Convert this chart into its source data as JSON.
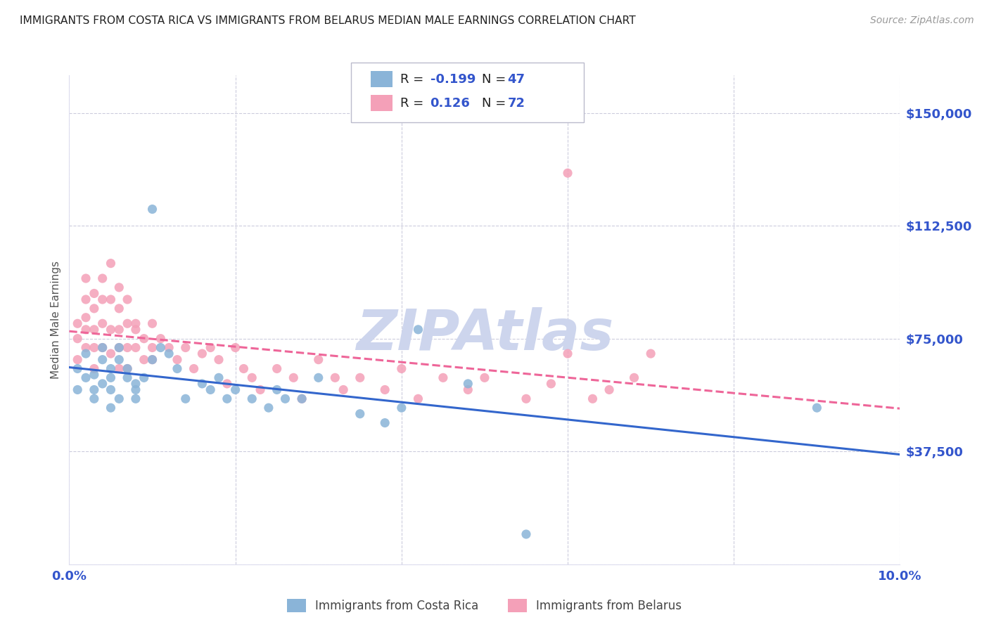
{
  "title": "IMMIGRANTS FROM COSTA RICA VS IMMIGRANTS FROM BELARUS MEDIAN MALE EARNINGS CORRELATION CHART",
  "source": "Source: ZipAtlas.com",
  "ylabel": "Median Male Earnings",
  "xlim": [
    0.0,
    0.1
  ],
  "ylim": [
    0,
    162500
  ],
  "yticks": [
    0,
    37500,
    75000,
    112500,
    150000
  ],
  "ytick_labels": [
    "",
    "$37,500",
    "$75,000",
    "$112,500",
    "$150,000"
  ],
  "xticks": [
    0.0,
    0.02,
    0.04,
    0.06,
    0.08,
    0.1
  ],
  "watermark": "ZIPAtlas",
  "watermark_color": "#cdd5ed",
  "title_color": "#222222",
  "axis_label_color": "#555555",
  "tick_label_color": "#3355cc",
  "background_color": "#ffffff",
  "grid_color": "#ccccdd",
  "series1_color": "#8ab4d8",
  "series2_color": "#f4a0b8",
  "line1_color": "#3366cc",
  "line2_color": "#ee6699",
  "r1": -0.199,
  "n1": 47,
  "r2": 0.126,
  "n2": 72,
  "costa_rica_x": [
    0.001,
    0.001,
    0.002,
    0.002,
    0.003,
    0.003,
    0.003,
    0.004,
    0.004,
    0.004,
    0.005,
    0.005,
    0.005,
    0.005,
    0.006,
    0.006,
    0.006,
    0.007,
    0.007,
    0.008,
    0.008,
    0.008,
    0.009,
    0.01,
    0.01,
    0.011,
    0.012,
    0.013,
    0.014,
    0.016,
    0.017,
    0.018,
    0.019,
    0.02,
    0.022,
    0.024,
    0.025,
    0.026,
    0.028,
    0.03,
    0.035,
    0.038,
    0.04,
    0.042,
    0.048,
    0.055,
    0.09
  ],
  "costa_rica_y": [
    65000,
    58000,
    62000,
    70000,
    58000,
    55000,
    63000,
    68000,
    60000,
    72000,
    65000,
    58000,
    52000,
    62000,
    68000,
    72000,
    55000,
    65000,
    62000,
    60000,
    55000,
    58000,
    62000,
    118000,
    68000,
    72000,
    70000,
    65000,
    55000,
    60000,
    58000,
    62000,
    55000,
    58000,
    55000,
    52000,
    58000,
    55000,
    55000,
    62000,
    50000,
    47000,
    52000,
    78000,
    60000,
    10000,
    52000
  ],
  "belarus_x": [
    0.001,
    0.001,
    0.001,
    0.002,
    0.002,
    0.002,
    0.002,
    0.002,
    0.003,
    0.003,
    0.003,
    0.003,
    0.003,
    0.004,
    0.004,
    0.004,
    0.004,
    0.005,
    0.005,
    0.005,
    0.005,
    0.006,
    0.006,
    0.006,
    0.006,
    0.006,
    0.007,
    0.007,
    0.007,
    0.007,
    0.008,
    0.008,
    0.008,
    0.009,
    0.009,
    0.01,
    0.01,
    0.01,
    0.011,
    0.012,
    0.013,
    0.014,
    0.015,
    0.016,
    0.017,
    0.018,
    0.019,
    0.02,
    0.021,
    0.022,
    0.023,
    0.025,
    0.027,
    0.028,
    0.03,
    0.032,
    0.033,
    0.035,
    0.038,
    0.04,
    0.042,
    0.045,
    0.048,
    0.05,
    0.055,
    0.058,
    0.06,
    0.063,
    0.065,
    0.068,
    0.07,
    0.06
  ],
  "belarus_y": [
    75000,
    80000,
    68000,
    88000,
    82000,
    95000,
    72000,
    78000,
    90000,
    85000,
    78000,
    72000,
    65000,
    95000,
    88000,
    80000,
    72000,
    100000,
    88000,
    78000,
    70000,
    92000,
    85000,
    78000,
    72000,
    65000,
    88000,
    80000,
    72000,
    65000,
    78000,
    72000,
    80000,
    75000,
    68000,
    80000,
    72000,
    68000,
    75000,
    72000,
    68000,
    72000,
    65000,
    70000,
    72000,
    68000,
    60000,
    72000,
    65000,
    62000,
    58000,
    65000,
    62000,
    55000,
    68000,
    62000,
    58000,
    62000,
    58000,
    65000,
    55000,
    62000,
    58000,
    62000,
    55000,
    60000,
    70000,
    55000,
    58000,
    62000,
    70000,
    130000
  ]
}
